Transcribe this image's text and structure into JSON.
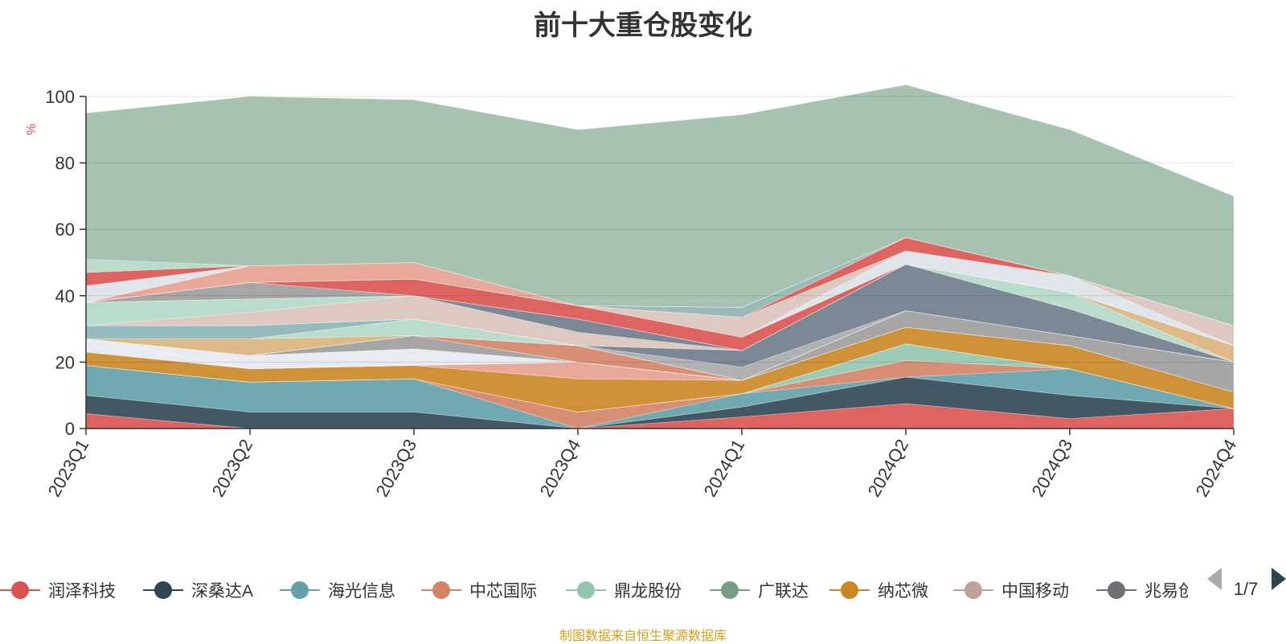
{
  "chart_data": {
    "type": "area",
    "stacked": true,
    "title": "前十大重仓股变化",
    "ylabel": "%",
    "ylim": [
      0,
      100
    ],
    "yticks": [
      0,
      20,
      40,
      60,
      80,
      100
    ],
    "categories": [
      "2023Q1",
      "2023Q2",
      "2023Q3",
      "2023Q4",
      "2024Q1",
      "2024Q2",
      "2024Q3",
      "2024Q4"
    ],
    "grid": true,
    "legend_position": "bottom",
    "legend_page": "1/7",
    "source": "制图数据来自恒生聚源数据库",
    "series": [
      {
        "name": "润泽科技",
        "color": "#d9534f",
        "values": [
          4.5,
          0,
          0,
          0,
          3.5,
          7.5,
          3,
          6
        ]
      },
      {
        "name": "深桑达A",
        "color": "#2f4554",
        "values": [
          5.5,
          5,
          5,
          0,
          3,
          8,
          7,
          0
        ]
      },
      {
        "name": "海光信息",
        "color": "#61a0a8",
        "values": [
          9,
          9,
          10,
          0,
          4,
          0,
          8,
          0
        ]
      },
      {
        "name": "中芯国际",
        "color": "#d48265",
        "values": [
          0,
          0,
          0,
          5,
          0,
          5,
          0,
          0
        ]
      },
      {
        "name": "鼎龙股份",
        "color": "#91c7ae",
        "values": [
          0,
          0,
          0,
          0,
          0,
          5,
          0,
          0
        ]
      },
      {
        "name": "广联达",
        "color": "#749f83",
        "values": [
          0,
          0,
          0,
          0,
          0,
          0,
          0,
          0
        ]
      },
      {
        "name": "纳芯微",
        "color": "#ca8622",
        "values": [
          0,
          0,
          0,
          0,
          0,
          0,
          0,
          0
        ]
      },
      {
        "name": "中国移动",
        "color": "#bda29a",
        "values": [
          0,
          0,
          0,
          0,
          0,
          0,
          0,
          0
        ]
      },
      {
        "name": "兆易创新",
        "color": "#6e7074",
        "values": [
          0,
          0,
          0,
          0,
          0,
          0,
          0,
          0
        ]
      },
      {
        "name": "",
        "color": "#ca8622",
        "values": [
          4,
          4,
          4,
          10,
          4,
          5,
          7,
          5
        ]
      },
      {
        "name": "",
        "color": "#e6e9ef",
        "values": [
          4,
          0,
          0,
          0,
          0,
          0,
          0,
          0
        ]
      },
      {
        "name": "",
        "color": "#e6a090",
        "values": [
          0,
          0,
          0,
          5,
          0,
          0,
          0,
          0
        ]
      },
      {
        "name": "",
        "color": "#61a0a8",
        "values": [
          0,
          0,
          0,
          0,
          0,
          0,
          0,
          0
        ]
      },
      {
        "name": "",
        "color": "#e6e9ef",
        "values": [
          0,
          4,
          5,
          0,
          0,
          0,
          0,
          0
        ]
      },
      {
        "name": "",
        "color": "#9c9c9c",
        "values": [
          0,
          0,
          4,
          0,
          0,
          5,
          3,
          9
        ]
      },
      {
        "name": "",
        "color": "#e8e1dd",
        "values": [
          0,
          0,
          0,
          0,
          0,
          0,
          0,
          0
        ]
      },
      {
        "name": "",
        "color": "#5f7282",
        "values": [
          0,
          0,
          0,
          0,
          0,
          0,
          0,
          0
        ]
      },
      {
        "name": "",
        "color": "#d48265",
        "values": [
          0,
          0,
          0,
          5,
          0,
          0,
          0,
          0
        ]
      },
      {
        "name": "",
        "color": "#e6e9ef",
        "values": [
          0,
          0,
          0,
          0,
          0,
          0,
          0,
          0
        ]
      },
      {
        "name": "",
        "color": "#b8b8b8",
        "values": [
          0,
          0,
          0,
          0,
          0,
          0,
          0,
          0
        ]
      },
      {
        "name": "",
        "color": "#d9b27a",
        "values": [
          0,
          5,
          0,
          0,
          0,
          0,
          0,
          0
        ]
      },
      {
        "name": "",
        "color": "#b2d8c6",
        "values": [
          0,
          0,
          5,
          0,
          0,
          0,
          0,
          0
        ]
      },
      {
        "name": "",
        "color": "#8ab4b8",
        "values": [
          4,
          4,
          0,
          0,
          0,
          0,
          0,
          0
        ]
      },
      {
        "name": "",
        "color": "#a8a8a8",
        "values": [
          0,
          0,
          0,
          0,
          4,
          0,
          0,
          0
        ]
      },
      {
        "name": "",
        "color": "#6e7b8b",
        "values": [
          0,
          0,
          0,
          0,
          5,
          14,
          8,
          0
        ]
      },
      {
        "name": "",
        "color": "#d9c3bb",
        "values": [
          0,
          4,
          7,
          4,
          0,
          0,
          0,
          0
        ]
      },
      {
        "name": "",
        "color": "#b2d8c6",
        "values": [
          7,
          4,
          0,
          0,
          0,
          0,
          5,
          0
        ]
      },
      {
        "name": "",
        "color": "#6e7b8b",
        "values": [
          0,
          0,
          0,
          4,
          0,
          0,
          0,
          0
        ]
      },
      {
        "name": "",
        "color": "#d9b27a",
        "values": [
          0,
          0,
          0,
          0,
          0,
          0,
          0,
          5
        ]
      },
      {
        "name": "",
        "color": "#9c9c9c",
        "values": [
          0,
          5,
          0,
          0,
          0,
          0,
          0,
          0
        ]
      },
      {
        "name": "",
        "color": "#d9534f",
        "values": [
          0,
          0,
          5,
          4,
          4,
          0,
          0,
          0
        ]
      },
      {
        "name": "",
        "color": "#dde2ea",
        "values": [
          0,
          0,
          0,
          0,
          0,
          4,
          5,
          0
        ]
      },
      {
        "name": "",
        "color": "#d9c3bb",
        "values": [
          0,
          0,
          0,
          0,
          6,
          0,
          0,
          6
        ]
      },
      {
        "name": "",
        "color": "#d9534f",
        "values": [
          0,
          0,
          0,
          0,
          0,
          4,
          0,
          0
        ]
      },
      {
        "name": "",
        "color": "#e6a090",
        "values": [
          0,
          5,
          5,
          0,
          0,
          0,
          0,
          0
        ]
      },
      {
        "name": "",
        "color": "#8fb1b1",
        "values": [
          0,
          0,
          0,
          0,
          3,
          0,
          0,
          0
        ]
      },
      {
        "name": "",
        "color": "#dde2ea",
        "values": [
          5,
          0,
          0,
          0,
          0,
          0,
          0,
          0
        ]
      },
      {
        "name": "",
        "color": "#d9534f",
        "values": [
          4,
          0,
          0,
          0,
          0,
          0,
          0,
          0
        ]
      },
      {
        "name": "",
        "color": "#b2d8c6",
        "values": [
          4,
          0,
          0,
          0,
          0,
          0,
          0,
          0
        ]
      },
      {
        "name": "",
        "color": "#9cbba9",
        "values": [
          44,
          51,
          49,
          53,
          58,
          46,
          44,
          39
        ]
      }
    ]
  }
}
